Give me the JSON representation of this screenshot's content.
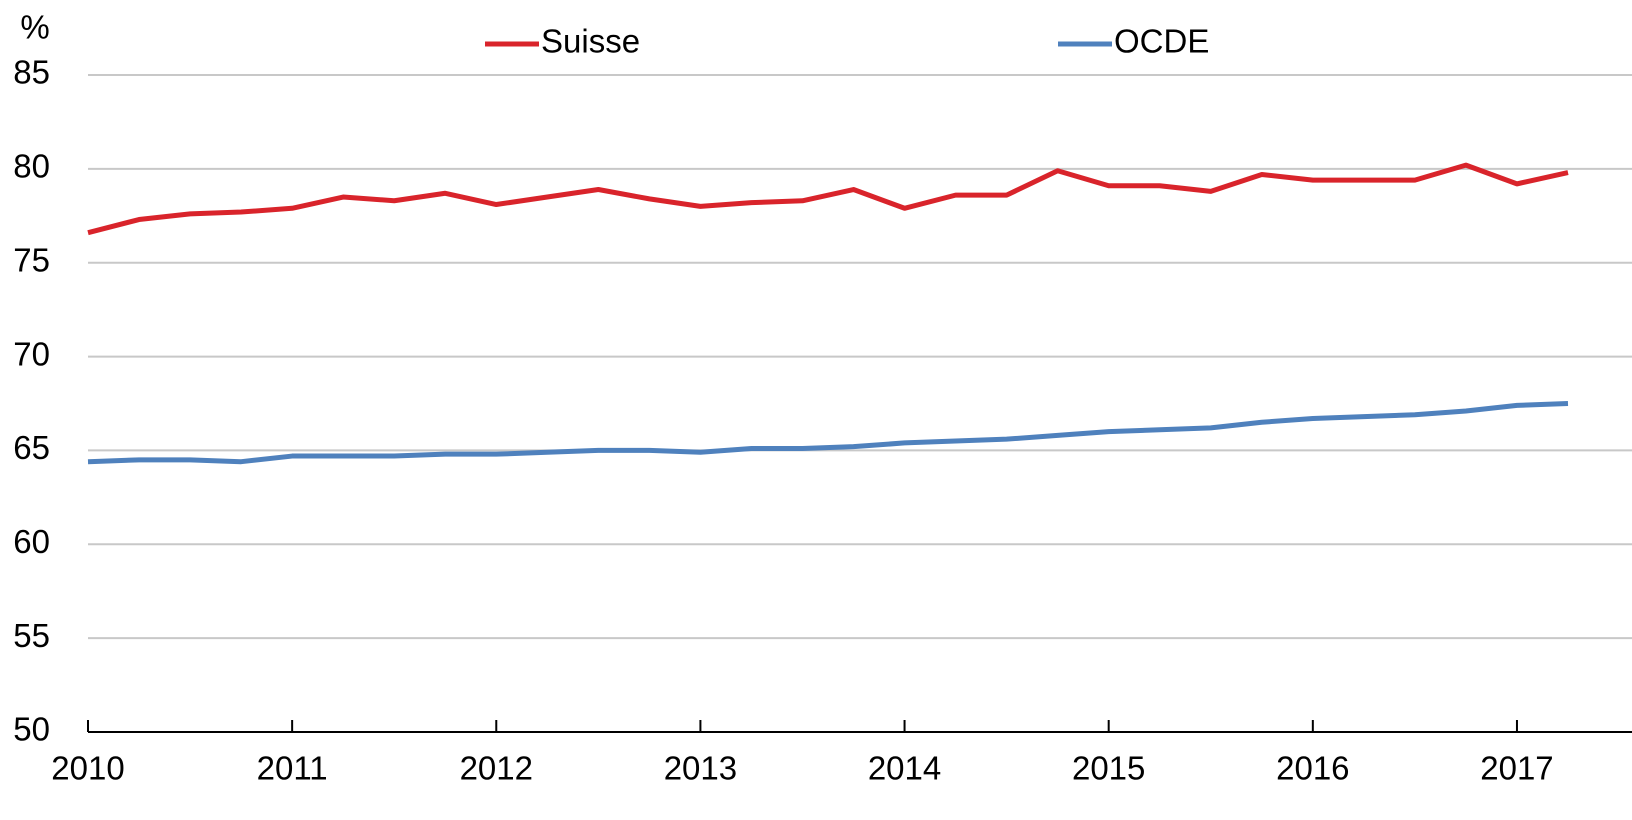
{
  "chart_data": {
    "type": "line",
    "y_label": "%",
    "categories": [
      "2010",
      null,
      null,
      null,
      "2011",
      null,
      null,
      null,
      "2012",
      null,
      null,
      null,
      "2013",
      null,
      null,
      null,
      "2014",
      null,
      null,
      null,
      "2015",
      null,
      null,
      null,
      "2016",
      null,
      null,
      null,
      "2017",
      null
    ],
    "series": [
      {
        "name": "Suisse",
        "color": "#d9242b",
        "values": [
          76.6,
          77.3,
          77.6,
          77.7,
          77.9,
          78.5,
          78.3,
          78.7,
          78.1,
          78.5,
          78.9,
          78.4,
          78.0,
          78.2,
          78.3,
          78.9,
          77.9,
          78.6,
          78.6,
          79.9,
          79.1,
          79.1,
          78.8,
          79.7,
          79.4,
          79.4,
          79.4,
          80.2,
          79.2,
          79.8
        ]
      },
      {
        "name": "OCDE",
        "color": "#4f81bd",
        "values": [
          64.4,
          64.5,
          64.5,
          64.4,
          64.7,
          64.7,
          64.7,
          64.8,
          64.8,
          64.9,
          65.0,
          65.0,
          64.9,
          65.1,
          65.1,
          65.2,
          65.4,
          65.5,
          65.6,
          65.8,
          66.0,
          66.1,
          66.2,
          66.5,
          66.7,
          66.8,
          66.9,
          67.1,
          67.4,
          67.5
        ]
      }
    ],
    "ylim": [
      50,
      85
    ],
    "yticks": [
      50,
      55,
      60,
      65,
      70,
      75,
      80,
      85
    ],
    "grid": true
  }
}
